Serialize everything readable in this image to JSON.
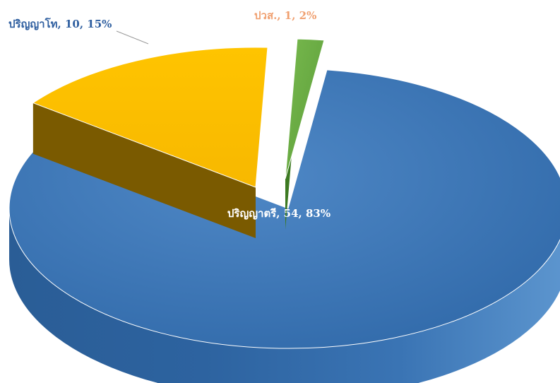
{
  "chart_data": {
    "type": "pie",
    "style": "3d-exploded",
    "title": "",
    "slices": [
      {
        "label": "ปริญญาตรี",
        "value": 54,
        "percent": 83,
        "color": "#3e78b8",
        "data_label": "ปริญญาตรี, 54, 83%",
        "label_color": "#ffffff"
      },
      {
        "label": "ปริญญาโท",
        "value": 10,
        "percent": 15,
        "color": "#ffbf00",
        "data_label": "ปริญญาโท, 10, 15%",
        "label_color": "#2f5fa0"
      },
      {
        "label": "ปวส.",
        "value": 1,
        "percent": 2,
        "color": "#6aae43",
        "data_label": "ปวส., 1, 2%",
        "label_color": "#f0a070"
      }
    ],
    "legend": "none",
    "leader_line": true
  }
}
